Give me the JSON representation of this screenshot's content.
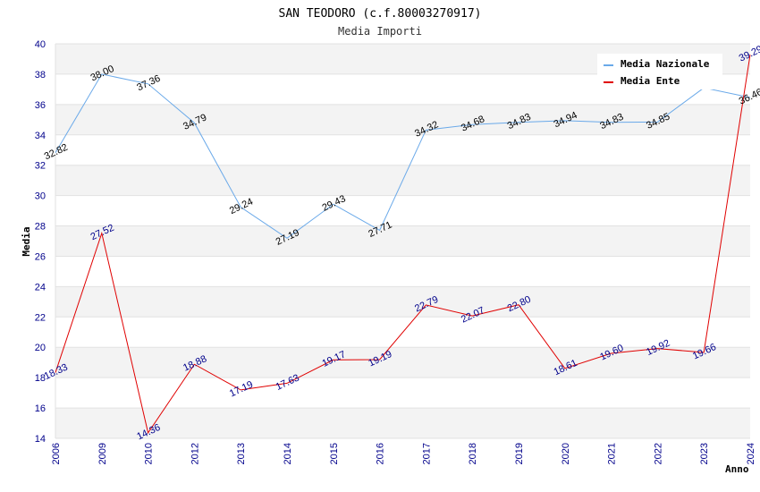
{
  "chart_data": {
    "type": "line",
    "title": "SAN TEODORO (c.f.80003270917)",
    "subtitle": "Media Importi",
    "ylabel": "Media",
    "xlabel": "Anno",
    "ylim": [
      14,
      40
    ],
    "yticks": [
      14,
      16,
      18,
      20,
      22,
      24,
      26,
      28,
      30,
      32,
      34,
      36,
      38,
      40
    ],
    "categories": [
      "2006",
      "2009",
      "2010",
      "2012",
      "2013",
      "2014",
      "2015",
      "2016",
      "2017",
      "2018",
      "2019",
      "2020",
      "2021",
      "2022",
      "2023",
      "2024"
    ],
    "grid": true,
    "legend_position": "top-right",
    "series": [
      {
        "name": "Media Nazionale",
        "color": "#6aa9e9",
        "values": [
          32.82,
          38.0,
          37.36,
          34.79,
          29.24,
          27.19,
          29.43,
          27.71,
          34.32,
          34.68,
          34.83,
          34.94,
          34.83,
          34.85,
          37.1,
          36.46
        ],
        "labels": [
          "32.82",
          "38.00",
          "37.36",
          "34.79",
          "29.24",
          "27.19",
          "29.43",
          "27.71",
          "34.32",
          "34.68",
          "34.83",
          "34.94",
          "34.83",
          "34.85",
          "",
          "36.46"
        ]
      },
      {
        "name": "Media Ente",
        "color": "#e00000",
        "values": [
          18.33,
          27.52,
          14.36,
          18.88,
          17.19,
          17.63,
          19.17,
          19.19,
          22.79,
          22.07,
          22.8,
          18.61,
          19.6,
          19.92,
          19.66,
          39.29
        ],
        "labels": [
          "18.33",
          "27.52",
          "14.36",
          "18.88",
          "17.19",
          "17.63",
          "19.17",
          "19.19",
          "22.79",
          "22.07",
          "22.80",
          "18.61",
          "19.60",
          "19.92",
          "19.66",
          "39.29"
        ]
      }
    ]
  }
}
